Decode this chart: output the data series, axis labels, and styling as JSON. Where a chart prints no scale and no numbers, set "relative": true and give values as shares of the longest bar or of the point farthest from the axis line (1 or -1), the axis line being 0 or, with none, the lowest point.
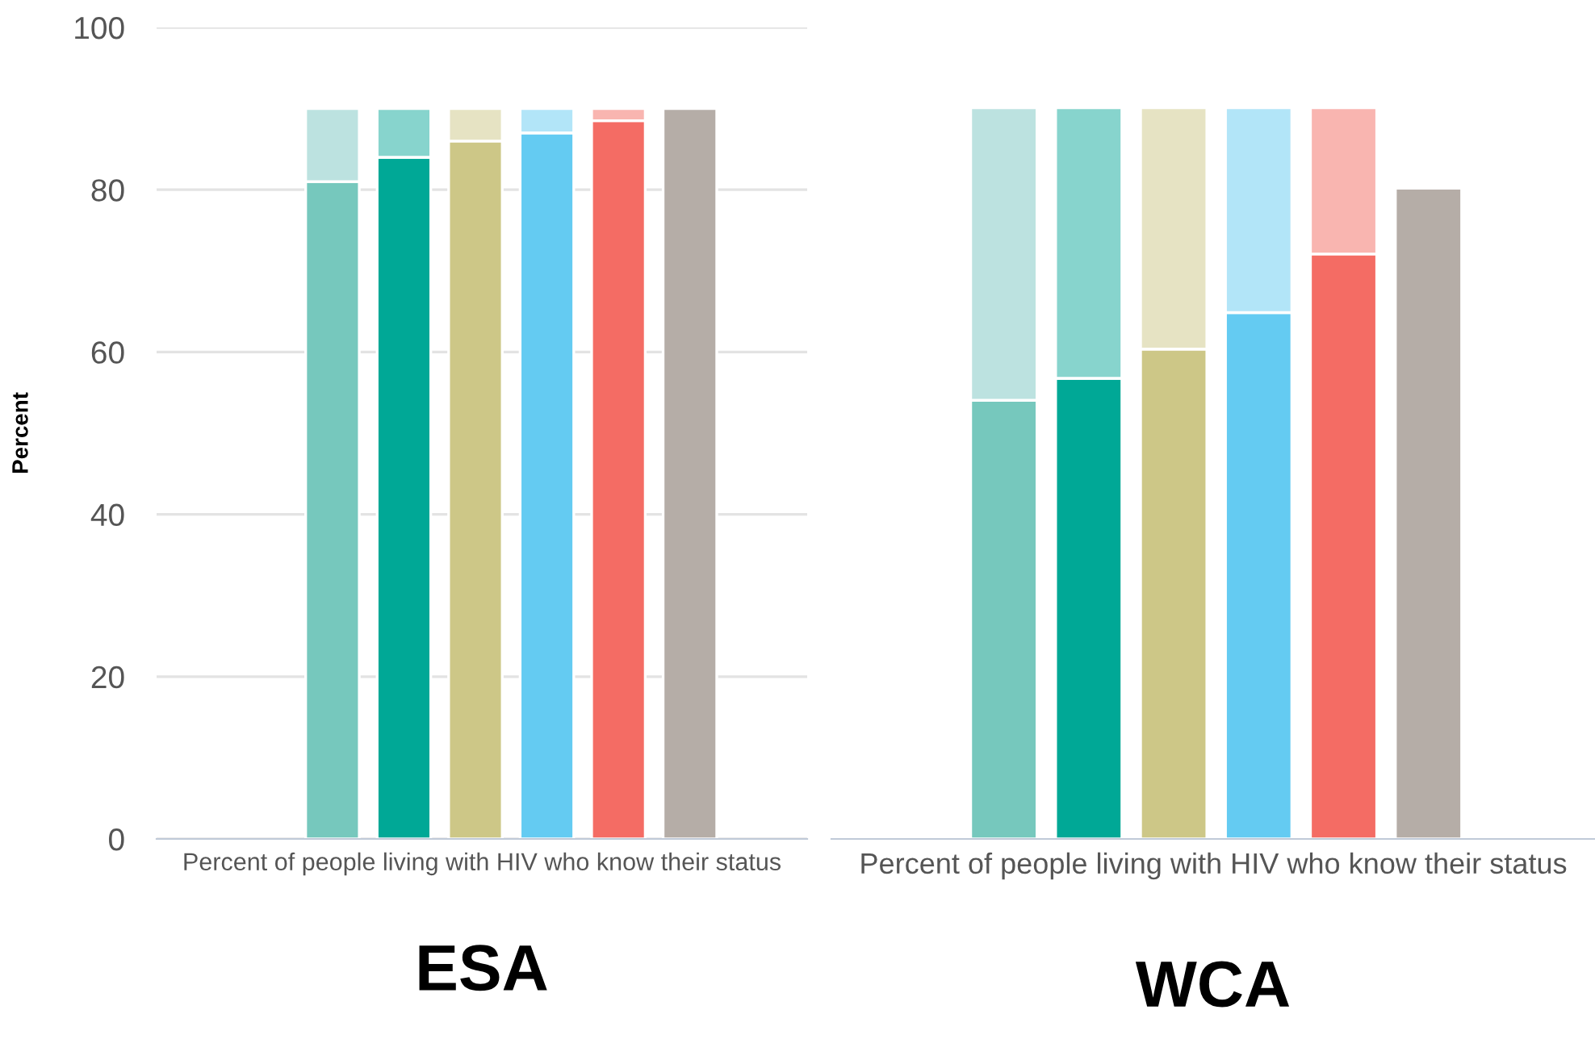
{
  "chart_data": [
    {
      "type": "bar",
      "title": "ESA",
      "ylabel": "Percent",
      "xlabel": "Percent of people living with HIV who know their status",
      "categories": [
        null,
        null,
        null,
        null,
        null,
        null
      ],
      "stacked": true,
      "ylim": [
        0,
        100
      ],
      "yticks": [
        0,
        20,
        40,
        60,
        80,
        100
      ],
      "grid": "y",
      "tick_labels": "y",
      "series": [
        {
          "colors": [
            "#76c8bd",
            "#00a896",
            "#cdc787",
            "#64cbf2",
            "#f46c64",
            "#b5ada7"
          ],
          "values": [
            81,
            84,
            86,
            87,
            88.5,
            90
          ]
        },
        {
          "colors": [
            "#bce2e0",
            "#87d4cd",
            "#e6e3c3",
            "#b2e5f8",
            "#f9b5b0",
            "#b5ada7"
          ],
          "values": [
            9,
            6,
            4,
            3,
            1.5,
            null
          ]
        }
      ]
    },
    {
      "type": "bar",
      "title": "WCA",
      "xlabel": "Percent of people living with HIV who know their status",
      "categories": [
        null,
        null,
        null,
        null,
        null,
        null
      ],
      "stacked": true,
      "relative": true,
      "tick_labels": false,
      "series": [
        {
          "colors": [
            "#76c8bd",
            "#00a896",
            "#cdc787",
            "#64cbf2",
            "#f46c64",
            "#b5ada7"
          ],
          "values": [
            0.6,
            0.63,
            0.67,
            0.72,
            0.8,
            0.89
          ]
        },
        {
          "colors": [
            "#bce2e0",
            "#87d4cd",
            "#e6e3c3",
            "#b2e5f8",
            "#f9b5b0",
            "#b5ada7"
          ],
          "values": [
            0.4,
            0.37,
            0.33,
            0.28,
            0.2,
            null
          ]
        }
      ]
    }
  ]
}
